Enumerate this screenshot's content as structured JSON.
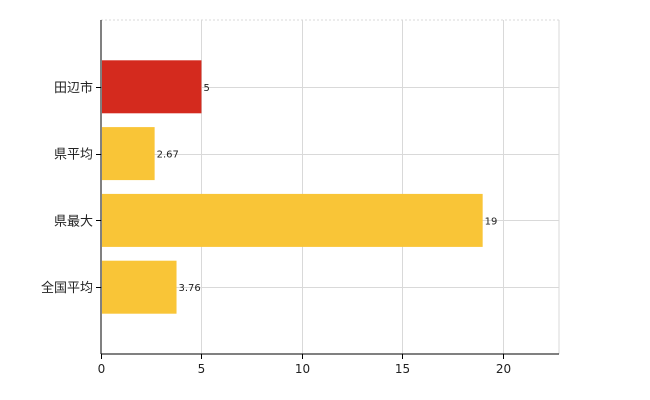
{
  "chart_data": {
    "type": "bar",
    "orientation": "horizontal",
    "categories": [
      "田辺市",
      "県平均",
      "県最大",
      "全国平均"
    ],
    "values": [
      5,
      2.67,
      19,
      3.76
    ],
    "value_labels": [
      "5",
      "2.67",
      "19",
      "3.76"
    ],
    "bar_colors": [
      "#d42a1e",
      "#f9c537",
      "#f9c537",
      "#f9c537"
    ],
    "xlim": [
      0,
      22.8
    ],
    "xticks": [
      0,
      5,
      10,
      15,
      20
    ],
    "xtick_labels": [
      "0",
      "5",
      "10",
      "15",
      "20"
    ],
    "grid": true,
    "legend": "none",
    "colors": {
      "highlight": "#d42a1e",
      "default": "#f9c537",
      "grid": "#d9d9d9",
      "axis": "#000000"
    }
  }
}
